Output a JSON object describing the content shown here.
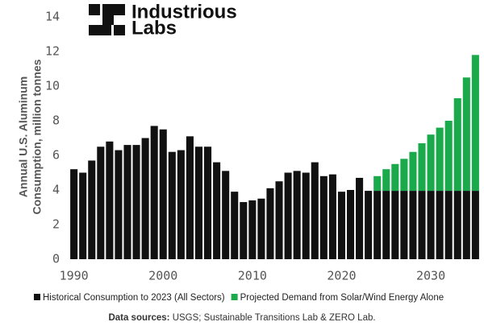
{
  "chart_data": {
    "type": "bar",
    "stacked": true,
    "brand": [
      "Industrious",
      "Labs"
    ],
    "y_label": [
      "Annual U.S. Aluminum",
      "Consumption, million tonnes"
    ],
    "source_label": "Data sources:",
    "source_text": "USGS; Sustainable Transitions Lab & ZERO Lab.",
    "x": [
      1990,
      1991,
      1992,
      1993,
      1994,
      1995,
      1996,
      1997,
      1998,
      1999,
      2000,
      2001,
      2002,
      2003,
      2004,
      2005,
      2006,
      2007,
      2008,
      2009,
      2010,
      2011,
      2012,
      2013,
      2014,
      2015,
      2016,
      2017,
      2018,
      2019,
      2020,
      2021,
      2022,
      2023,
      2024,
      2025,
      2026,
      2027,
      2028,
      2029,
      2030,
      2031,
      2032,
      2033,
      2034,
      2035
    ],
    "series": [
      {
        "name": "Historical Consumption to 2023 (All Sectors)",
        "color": "#111111",
        "values": [
          5.2,
          5.0,
          5.7,
          6.5,
          6.8,
          6.3,
          6.6,
          6.6,
          7.0,
          7.7,
          7.5,
          6.2,
          6.3,
          7.1,
          6.5,
          6.5,
          5.6,
          5.1,
          3.9,
          3.3,
          3.4,
          3.5,
          4.1,
          4.5,
          5.0,
          5.1,
          5.0,
          5.6,
          4.8,
          4.9,
          3.9,
          4.0,
          4.7,
          3.95,
          3.95,
          3.95,
          3.95,
          3.95,
          3.95,
          3.95,
          3.95,
          3.95,
          3.95,
          3.95,
          3.95,
          3.95
        ]
      },
      {
        "name": "Projected Demand from Solar/Wind Energy Alone",
        "color": "#1aaa4b",
        "values": [
          null,
          null,
          null,
          null,
          null,
          null,
          null,
          null,
          null,
          null,
          null,
          null,
          null,
          null,
          null,
          null,
          null,
          null,
          null,
          null,
          null,
          null,
          null,
          null,
          null,
          null,
          null,
          null,
          null,
          null,
          null,
          null,
          null,
          null,
          0.85,
          1.25,
          1.55,
          1.85,
          2.25,
          2.75,
          3.25,
          3.65,
          4.05,
          5.35,
          6.55,
          7.85
        ]
      }
    ],
    "xlim": [
      1989.4,
      2035.6
    ],
    "xticks": [
      1990,
      2000,
      2010,
      2020,
      2030
    ],
    "ylim": [
      0,
      14
    ],
    "yticks": [
      0,
      2,
      4,
      6,
      8,
      10,
      12,
      14
    ]
  }
}
